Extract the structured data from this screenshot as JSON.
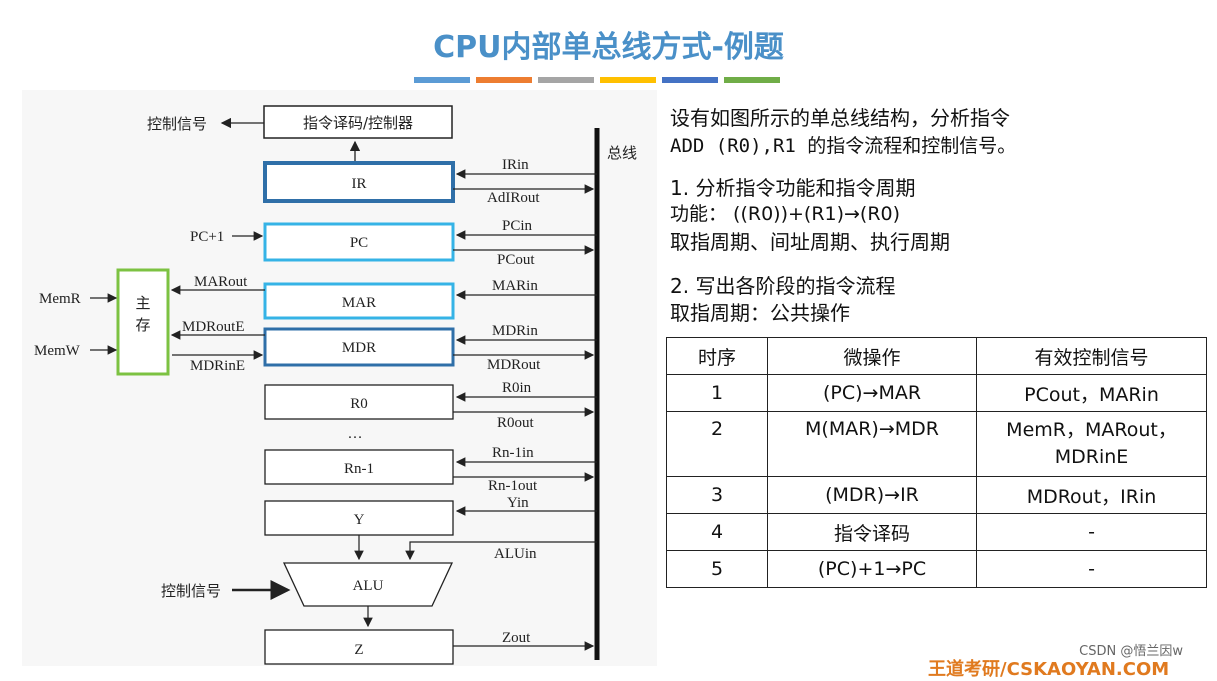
{
  "title": "CPU内部单总线方式-例题",
  "title_bar_colors": [
    "#5b9bd5",
    "#ed7d31",
    "#a5a5a5",
    "#ffc000",
    "#4472c4",
    "#70ad47"
  ],
  "diagram": {
    "control_signal_top": "控制信号",
    "decoder": "指令译码/控制器",
    "bus": "总线",
    "ir": "IR",
    "ir_in": "IRin",
    "ir_out": "AdIRout",
    "pc_plus": "PC+1",
    "pc": "PC",
    "pc_in": "PCin",
    "pc_out": "PCout",
    "mem_r": "MemR",
    "mem_w": "MemW",
    "memory": "主存",
    "mar_out": "MARout",
    "mdr_out_e": "MDRoutE",
    "mdr_in_e": "MDRinE",
    "mar": "MAR",
    "mar_in": "MARin",
    "mdr": "MDR",
    "mdr_in": "MDRin",
    "mdr_out": "MDRout",
    "r0": "R0",
    "r0_in": "R0in",
    "r0_out": "R0out",
    "ellipsis": "…",
    "rn1": "Rn-1",
    "rn1_in": "Rn-1in",
    "rn1_out": "Rn-1out",
    "y": "Y",
    "y_in": "Yin",
    "alu": "ALU",
    "alu_in": "ALUin",
    "control_signal_alu": "控制信号",
    "z": "Z",
    "z_out": "Zout"
  },
  "question": {
    "line1": "设有如图所示的单总线结构，分析指令",
    "line2": "ADD (R0),R1 的指令流程和控制信号。"
  },
  "step1": {
    "heading": "1. 分析指令功能和指令周期",
    "function": "功能： ((R0))+(R1)→(R0)",
    "cycles": "取指周期、间址周期、执行周期"
  },
  "step2": {
    "heading": "2. 写出各阶段的指令流程",
    "fetch": "取指周期：公共操作"
  },
  "table": {
    "headers": [
      "时序",
      "微操作",
      "有效控制信号"
    ],
    "rows": [
      [
        "1",
        "(PC)→MAR",
        "PCout，MARin"
      ],
      [
        "2",
        "M(MAR)→MDR",
        "MemR，MARout，\nMDRinE"
      ],
      [
        "3",
        "(MDR)→IR",
        "MDRout，IRin"
      ],
      [
        "4",
        "指令译码",
        "-"
      ],
      [
        "5",
        "(PC)+1→PC",
        "-"
      ]
    ]
  },
  "footer": "CSDN @悟兰因w",
  "brand": "王道考研/CSKAOYAN.COM"
}
